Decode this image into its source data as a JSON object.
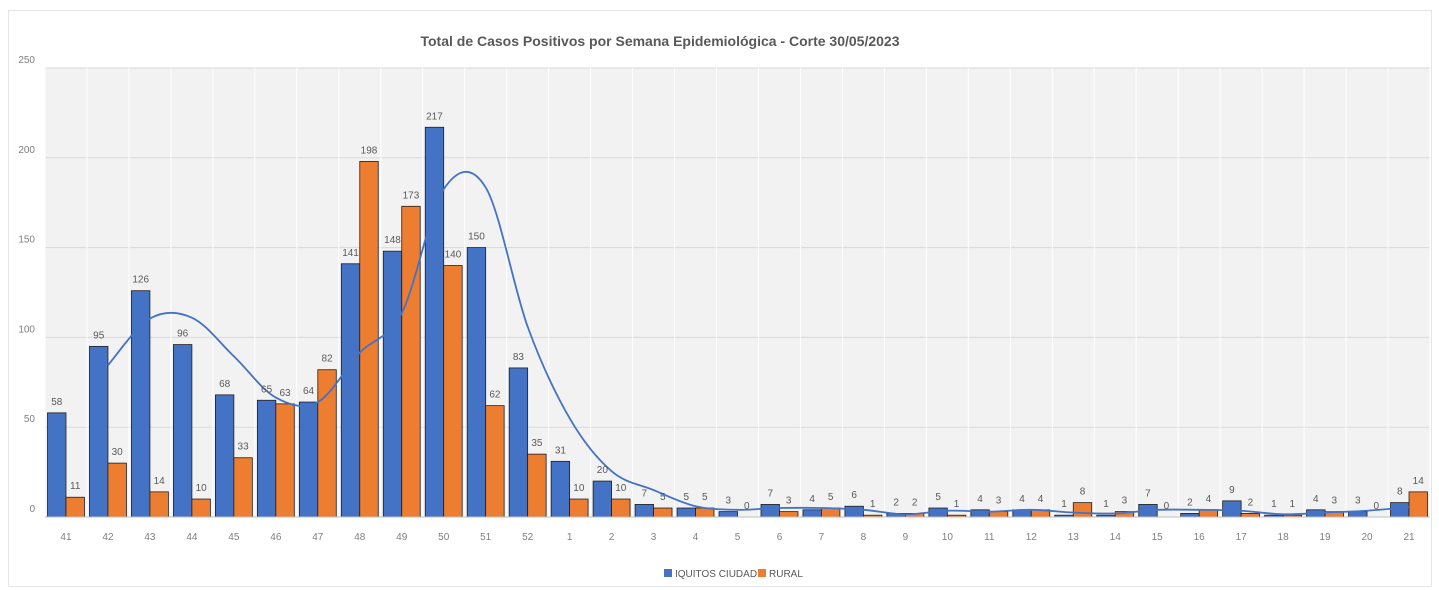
{
  "chart_data": {
    "type": "bar",
    "title": "Total de Casos Positivos por Semana Epidemiológica - Corte 30/05/2023",
    "xlabel": "",
    "ylabel": "",
    "ylim": [
      0,
      250
    ],
    "yticks": [
      0,
      50,
      100,
      150,
      200,
      250
    ],
    "grid": true,
    "legend_position": "bottom",
    "categories": [
      "41",
      "42",
      "43",
      "44",
      "45",
      "46",
      "47",
      "48",
      "49",
      "50",
      "51",
      "52",
      "1",
      "2",
      "3",
      "4",
      "5",
      "6",
      "7",
      "8",
      "9",
      "10",
      "11",
      "12",
      "13",
      "14",
      "15",
      "16",
      "17",
      "18",
      "19",
      "20",
      "21"
    ],
    "series": [
      {
        "name": "IQUITOS CIUDAD",
        "color": "#4472c4",
        "values": [
          58,
          95,
          126,
          96,
          68,
          65,
          64,
          141,
          148,
          217,
          150,
          83,
          31,
          20,
          7,
          5,
          3,
          7,
          4,
          6,
          2,
          5,
          4,
          4,
          1,
          1,
          7,
          2,
          9,
          1,
          4,
          3,
          8
        ]
      },
      {
        "name": "RURAL",
        "color": "#ed7d31",
        "values": [
          11,
          30,
          14,
          10,
          33,
          63,
          82,
          198,
          173,
          140,
          62,
          35,
          10,
          10,
          5,
          5,
          0,
          3,
          5,
          1,
          2,
          1,
          3,
          4,
          8,
          3,
          0,
          4,
          2,
          1,
          3,
          0,
          14
        ]
      }
    ],
    "trendline": {
      "color": "#4472c4",
      "values": [
        null,
        84.5,
        110.5,
        111,
        89.5,
        66.5,
        64,
        91.5,
        113.5,
        182.5,
        183.5,
        106,
        55,
        25.5,
        15,
        6,
        4,
        5,
        5,
        4,
        1.5,
        3.5,
        3,
        4,
        2.5,
        2,
        4,
        4,
        3.5,
        1.5,
        2.5,
        3.5,
        5.5
      ]
    }
  }
}
